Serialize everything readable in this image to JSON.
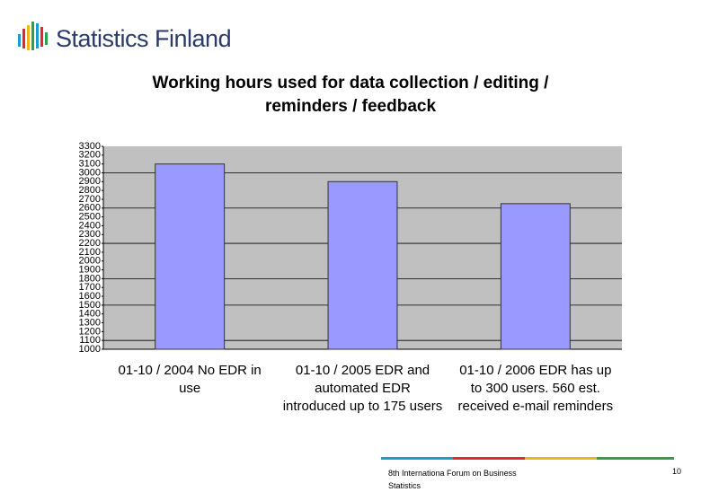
{
  "header": {
    "logo_text": "Statistics Finland"
  },
  "chart_data": {
    "type": "bar",
    "title": "Working hours used for data collection / editing / reminders / feedback",
    "categories": [
      "01-10 / 2004 No EDR in use",
      "01-10 / 2005 EDR and automated EDR introduced up to 175 users",
      "01-10 / 2006 EDR has up to 300 users. 560 est. received e-mail reminders"
    ],
    "values": [
      3100,
      2900,
      2650
    ],
    "color": "#9999ff",
    "ylim": [
      1000,
      3300
    ],
    "yticks": [
      1000,
      1100,
      1200,
      1300,
      1400,
      1500,
      1600,
      1700,
      1800,
      1900,
      2000,
      2100,
      2200,
      2300,
      2400,
      2500,
      2600,
      2700,
      2800,
      2900,
      3000,
      3100,
      3200,
      3300
    ],
    "grid": true,
    "grid_values": [
      1100,
      1500,
      1800,
      2200,
      2600,
      3000
    ]
  },
  "footer": {
    "text": "8th Internationa Forum on Business Statistics",
    "page": "10"
  }
}
